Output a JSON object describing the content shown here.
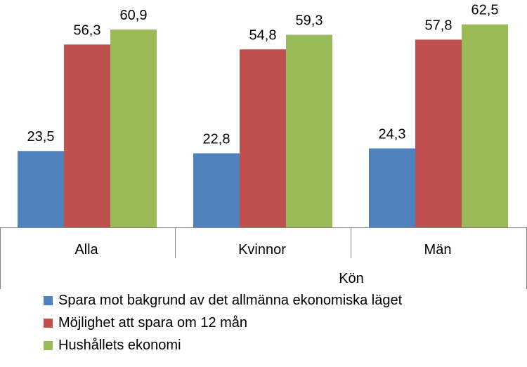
{
  "chart_data": {
    "type": "bar",
    "categories": [
      "Alla",
      "Kvinnor",
      "Män"
    ],
    "group_label": "Kön",
    "series": [
      {
        "name": "Spara mot bakgrund av det allmänna ekonomiska läget",
        "color": "#4F81BD",
        "values": [
          23.5,
          22.8,
          24.3
        ],
        "labels": [
          "23,5",
          "22,8",
          "24,3"
        ]
      },
      {
        "name": "Möjlighet att spara om 12 mån",
        "color": "#C0504D",
        "values": [
          56.3,
          54.8,
          57.8
        ],
        "labels": [
          "56,3",
          "54,8",
          "57,8"
        ]
      },
      {
        "name": "Hushållets ekonomi",
        "color": "#9BBB59",
        "values": [
          60.9,
          59.3,
          62.5
        ],
        "labels": [
          "60,9",
          "59,3",
          "62,5"
        ]
      }
    ],
    "ylim": [
      0,
      70
    ],
    "grid": false,
    "legend_position": "bottom"
  }
}
